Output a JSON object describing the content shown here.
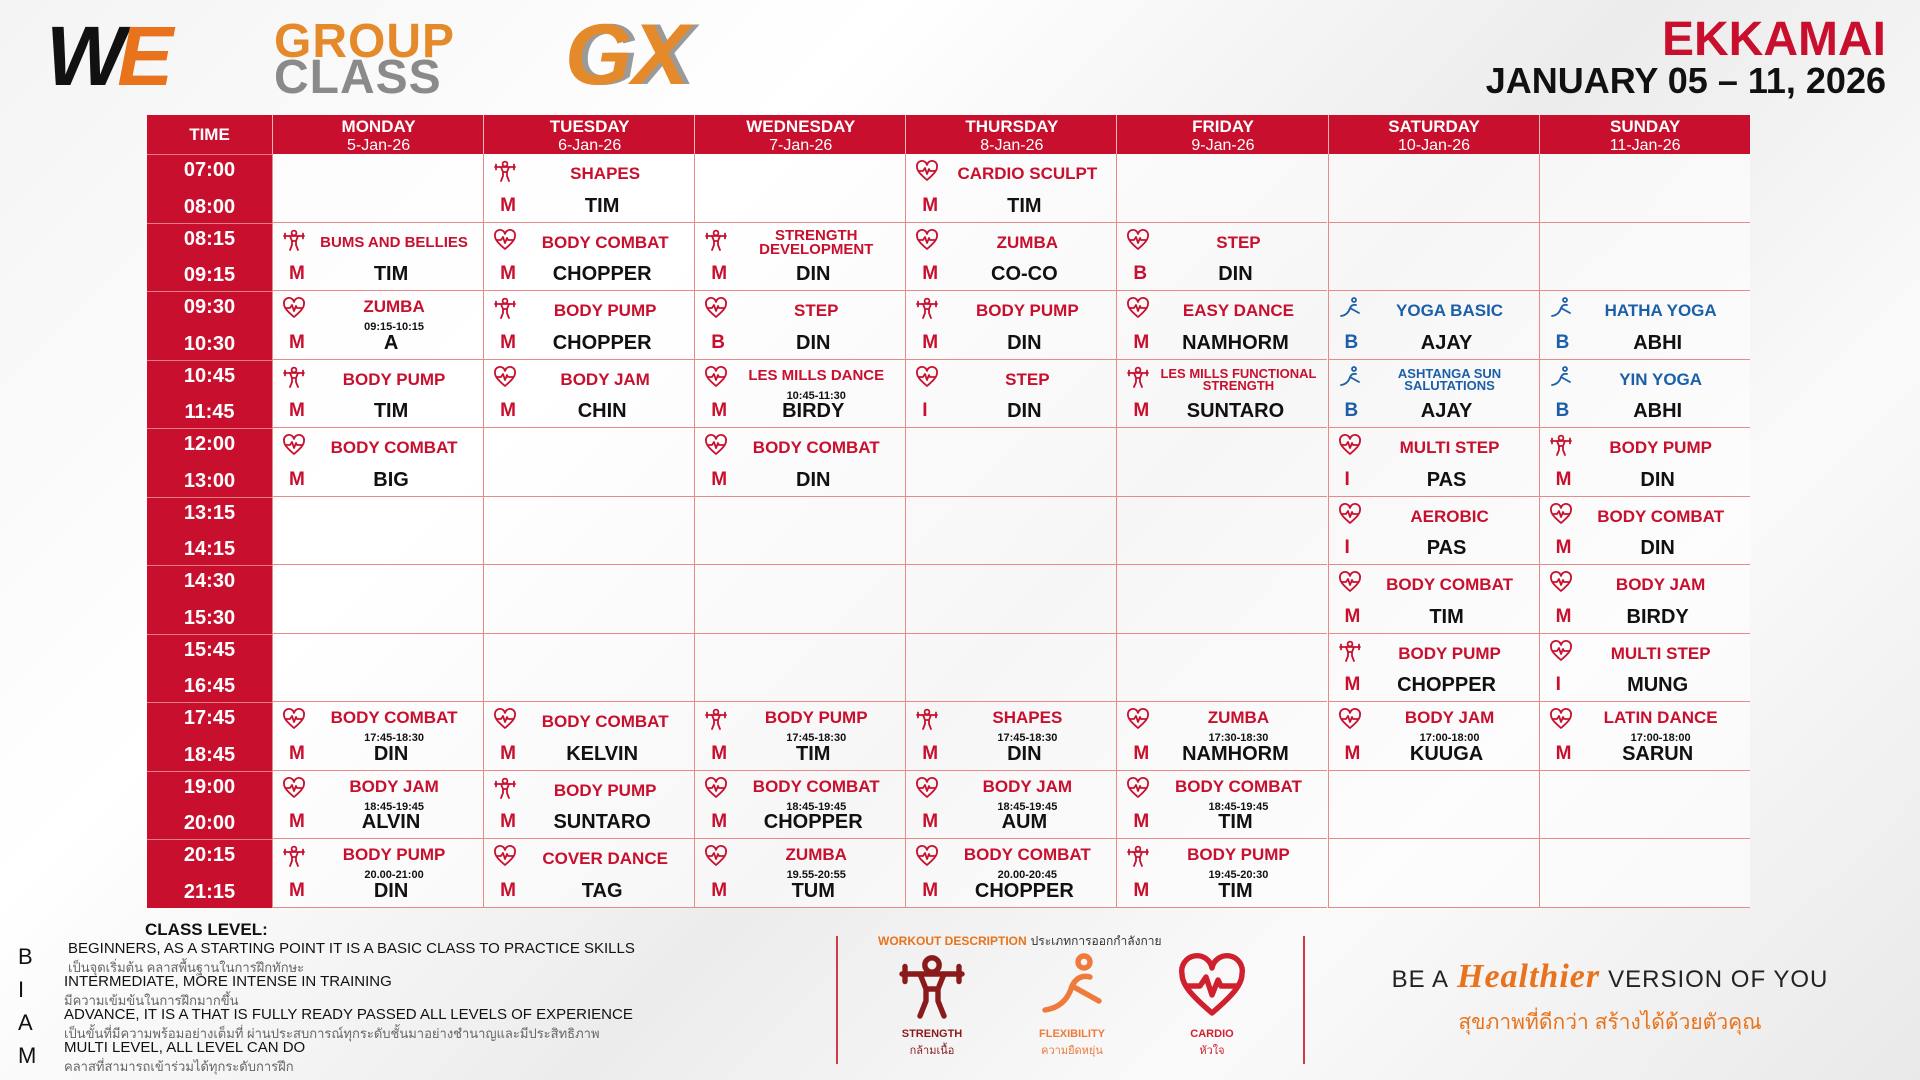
{
  "header": {
    "logo_w": "W",
    "logo_e": "E",
    "logo_group": "GROUP",
    "logo_class": "CLASS",
    "logo_gx": "GX",
    "location": "EKKAMAI",
    "dates": "JANUARY 05 – 11, 2026"
  },
  "table": {
    "time_header": "TIME",
    "days": [
      {
        "name": "MONDAY",
        "date": "5-Jan-26"
      },
      {
        "name": "TUESDAY",
        "date": "6-Jan-26"
      },
      {
        "name": "WEDNESDAY",
        "date": "7-Jan-26"
      },
      {
        "name": "THURSDAY",
        "date": "8-Jan-26"
      },
      {
        "name": "FRIDAY",
        "date": "9-Jan-26"
      },
      {
        "name": "SATURDAY",
        "date": "10-Jan-26"
      },
      {
        "name": "SUNDAY",
        "date": "11-Jan-26"
      }
    ],
    "rows": [
      {
        "start": "07:00",
        "end": "08:00",
        "cells": [
          null,
          {
            "icon": "strength",
            "name": "SHAPES",
            "level": "M",
            "trainer": "TIM"
          },
          null,
          {
            "icon": "cardio",
            "name": "CARDIO SCULPT",
            "level": "M",
            "trainer": "TIM"
          },
          null,
          null,
          null
        ]
      },
      {
        "start": "08:15",
        "end": "09:15",
        "cells": [
          {
            "icon": "strength",
            "name": "BUMS AND BELLIES",
            "level": "M",
            "trainer": "TIM"
          },
          {
            "icon": "cardio",
            "name": "BODY COMBAT",
            "level": "M",
            "trainer": "CHOPPER"
          },
          {
            "icon": "strength",
            "name": "STRENGTH DEVELOPMENT",
            "level": "M",
            "trainer": "DIN"
          },
          {
            "icon": "cardio",
            "name": "ZUMBA",
            "level": "M",
            "trainer": "CO-CO"
          },
          {
            "icon": "cardio",
            "name": "STEP",
            "level": "B",
            "trainer": "DIN"
          },
          null,
          null
        ]
      },
      {
        "start": "09:30",
        "end": "10:30",
        "cells": [
          {
            "icon": "cardio",
            "name": "ZUMBA",
            "time": "09:15-10:15",
            "level": "M",
            "trainer": "A"
          },
          {
            "icon": "strength",
            "name": "BODY PUMP",
            "level": "M",
            "trainer": "CHOPPER"
          },
          {
            "icon": "cardio",
            "name": "STEP",
            "level": "B",
            "trainer": "DIN"
          },
          {
            "icon": "strength",
            "name": "BODY PUMP",
            "level": "M",
            "trainer": "DIN"
          },
          {
            "icon": "cardio",
            "name": "EASY DANCE",
            "level": "M",
            "trainer": "NAMHORM"
          },
          {
            "icon": "flexibility",
            "name": "YOGA BASIC",
            "level": "B",
            "trainer": "AJAY"
          },
          {
            "icon": "flexibility",
            "name": "HATHA YOGA",
            "level": "B",
            "trainer": "ABHI"
          }
        ]
      },
      {
        "start": "10:45",
        "end": "11:45",
        "cells": [
          {
            "icon": "strength",
            "name": "BODY PUMP",
            "level": "M",
            "trainer": "TIM"
          },
          {
            "icon": "cardio",
            "name": "BODY JAM",
            "level": "M",
            "trainer": "CHIN"
          },
          {
            "icon": "cardio",
            "name": "LES MILLS DANCE",
            "time": "10:45-11:30",
            "level": "M",
            "trainer": "BIRDY"
          },
          {
            "icon": "cardio",
            "name": "STEP",
            "level": "I",
            "trainer": "DIN"
          },
          {
            "icon": "strength",
            "name": "LES MILLS FUNCTIONAL STRENGTH",
            "level": "M",
            "trainer": "SUNTARO"
          },
          {
            "icon": "flexibility",
            "name": "ASHTANGA SUN SALUTATIONS",
            "level": "B",
            "trainer": "AJAY"
          },
          {
            "icon": "flexibility",
            "name": "YIN YOGA",
            "level": "B",
            "trainer": "ABHI"
          }
        ]
      },
      {
        "start": "12:00",
        "end": "13:00",
        "cells": [
          {
            "icon": "cardio",
            "name": "BODY COMBAT",
            "level": "M",
            "trainer": "BIG"
          },
          null,
          {
            "icon": "cardio",
            "name": "BODY COMBAT",
            "level": "M",
            "trainer": "DIN"
          },
          null,
          null,
          {
            "icon": "cardio",
            "name": "MULTI STEP",
            "level": "I",
            "trainer": "PAS"
          },
          {
            "icon": "strength",
            "name": "BODY PUMP",
            "level": "M",
            "trainer": "DIN"
          }
        ]
      },
      {
        "start": "13:15",
        "end": "14:15",
        "cells": [
          null,
          null,
          null,
          null,
          null,
          {
            "icon": "cardio",
            "name": "AEROBIC",
            "level": "I",
            "trainer": "PAS"
          },
          {
            "icon": "cardio",
            "name": "BODY COMBAT",
            "level": "M",
            "trainer": "DIN"
          }
        ]
      },
      {
        "start": "14:30",
        "end": "15:30",
        "cells": [
          null,
          null,
          null,
          null,
          null,
          {
            "icon": "cardio",
            "name": "BODY COMBAT",
            "level": "M",
            "trainer": "TIM"
          },
          {
            "icon": "cardio",
            "name": "BODY JAM",
            "level": "M",
            "trainer": "BIRDY"
          }
        ]
      },
      {
        "start": "15:45",
        "end": "16:45",
        "cells": [
          null,
          null,
          null,
          null,
          null,
          {
            "icon": "strength",
            "name": "BODY PUMP",
            "level": "M",
            "trainer": "CHOPPER"
          },
          {
            "icon": "cardio",
            "name": "MULTI STEP",
            "level": "I",
            "trainer": "MUNG"
          }
        ]
      },
      {
        "start": "17:45",
        "end": "18:45",
        "cells": [
          {
            "icon": "cardio",
            "name": "BODY COMBAT",
            "time": "17:45-18:30",
            "level": "M",
            "trainer": "DIN"
          },
          {
            "icon": "cardio",
            "name": "BODY COMBAT",
            "level": "M",
            "trainer": "KELVIN"
          },
          {
            "icon": "strength",
            "name": "BODY PUMP",
            "time": "17:45-18:30",
            "level": "M",
            "trainer": "TIM"
          },
          {
            "icon": "strength",
            "name": "SHAPES",
            "time": "17:45-18:30",
            "level": "M",
            "trainer": "DIN"
          },
          {
            "icon": "cardio",
            "name": "ZUMBA",
            "time": "17:30-18:30",
            "level": "M",
            "trainer": "NAMHORM"
          },
          {
            "icon": "cardio",
            "name": "BODY JAM",
            "time": "17:00-18:00",
            "level": "M",
            "trainer": "KUUGA"
          },
          {
            "icon": "cardio",
            "name": "LATIN DANCE",
            "time": "17:00-18:00",
            "level": "M",
            "trainer": "SARUN"
          }
        ]
      },
      {
        "start": "19:00",
        "end": "20:00",
        "cells": [
          {
            "icon": "cardio",
            "name": "BODY JAM",
            "time": "18:45-19:45",
            "level": "M",
            "trainer": "ALVIN"
          },
          {
            "icon": "strength",
            "name": "BODY PUMP",
            "level": "M",
            "trainer": "SUNTARO"
          },
          {
            "icon": "cardio",
            "name": "BODY COMBAT",
            "time": "18:45-19:45",
            "level": "M",
            "trainer": "CHOPPER"
          },
          {
            "icon": "cardio",
            "name": "BODY JAM",
            "time": "18:45-19:45",
            "level": "M",
            "trainer": "AUM"
          },
          {
            "icon": "cardio",
            "name": "BODY COMBAT",
            "time": "18:45-19:45",
            "level": "M",
            "trainer": "TIM"
          },
          null,
          null
        ]
      },
      {
        "start": "20:15",
        "end": "21:15",
        "cells": [
          {
            "icon": "strength",
            "name": "BODY PUMP",
            "time": "20.00-21:00",
            "level": "M",
            "trainer": "DIN"
          },
          {
            "icon": "cardio",
            "name": "COVER DANCE",
            "level": "M",
            "trainer": "TAG"
          },
          {
            "icon": "cardio",
            "name": "ZUMBA",
            "time": "19.55-20:55",
            "level": "M",
            "trainer": "TUM"
          },
          {
            "icon": "cardio",
            "name": "BODY COMBAT",
            "time": "20.00-20:45",
            "level": "M",
            "trainer": "CHOPPER"
          },
          {
            "icon": "strength",
            "name": "BODY PUMP",
            "time": "19:45-20:30",
            "level": "M",
            "trainer": "TIM"
          },
          null,
          null
        ]
      }
    ]
  },
  "class_level": {
    "title": "CLASS LEVEL:",
    "levels": [
      {
        "letter": "B",
        "en": "BEGINNERS, AS A STARTING POINT IT IS A BASIC CLASS TO PRACTICE SKILLS",
        "th": "เป็นจุดเริ่มต้น คลาสพื้นฐานในการฝึกทักษะ"
      },
      {
        "letter": "I",
        "en": "INTERMEDIATE, MORE INTENSE IN TRAINING",
        "th": "มีความเข้มข้นในการฝึกมากขึ้น"
      },
      {
        "letter": "A",
        "en": "ADVANCE, IT IS A THAT IS FULLY READY PASSED ALL LEVELS OF EXPERIENCE",
        "th": "เป็นขั้นที่มีความพร้อมอย่างเต็มที่ ผ่านประสบการณ์ทุกระดับชั้นมาอย่างชำนาญและมีประสิทธิภาพ"
      },
      {
        "letter": "M",
        "en": "MULTI LEVEL, ALL LEVEL CAN DO",
        "th": "คลาสที่สามารถเข้าร่วมได้ทุกระดับการฝึก"
      }
    ]
  },
  "workout": {
    "title_en": "WORKOUT DESCRIPTION",
    "title_th": "ประเภทการออกกำลังกาย",
    "types": [
      {
        "icon": "strength",
        "label": "STRENGTH",
        "th": "กล้ามเนื้อ"
      },
      {
        "icon": "flexibility",
        "label": "FLEXIBILITY",
        "th": "ความยืดหยุ่น"
      },
      {
        "icon": "cardio",
        "label": "CARDIO",
        "th": "หัวใจ"
      }
    ]
  },
  "tagline": {
    "pre": "BE A",
    "accent": "Healthier",
    "post": "VERSION OF YOU",
    "th": "สุขภาพที่ดีกว่า สร้างได้ด้วยตัวคุณ"
  }
}
